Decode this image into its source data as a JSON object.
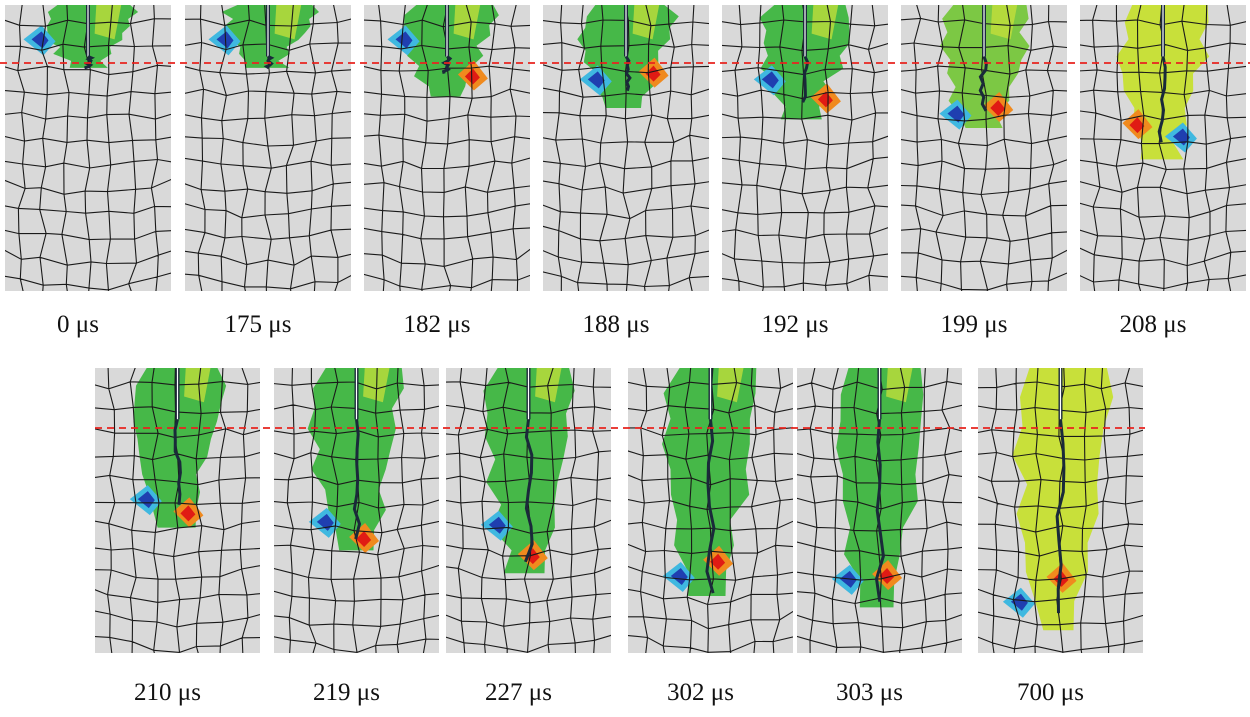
{
  "figure": {
    "row1_labels": [
      "0 μs",
      "175 μs",
      "182 μs",
      "188 μs",
      "192 μs",
      "199 μs",
      "208 μs"
    ],
    "row2_labels": [
      "210 μs",
      "219 μs",
      "227 μs",
      "302 μs",
      "303 μs",
      "700 μs"
    ],
    "colors": {
      "background": "#ffffff",
      "panel": "#d9d9d9",
      "mesh": "#1a1a1a",
      "reference_line": "#e8231f",
      "contour_green": "#46b848",
      "contour_yellow": "#c8e03a",
      "contour_blue": "#1f3fb0",
      "contour_cyan": "#3fb8e0",
      "contour_red": "#e01b14",
      "contour_orange": "#f08a1e",
      "crack": "#1a2a3a"
    }
  }
}
